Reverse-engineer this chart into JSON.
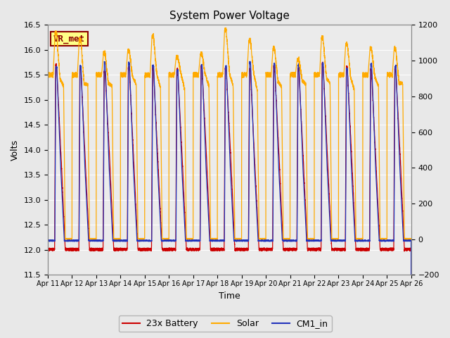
{
  "title": "System Power Voltage",
  "xlabel": "Time",
  "ylabel": "Volts",
  "ylim_left": [
    11.5,
    16.5
  ],
  "ylim_right": [
    -200,
    1200
  ],
  "bg_color": "#e8e8e8",
  "plot_bg_color": "#ebebeb",
  "grid_color": "#d0d0d0",
  "legend_labels": [
    "23x Battery",
    "Solar",
    "CM1_in"
  ],
  "colors": {
    "battery": "#cc0000",
    "solar": "#ffaa00",
    "cm1": "#2233bb"
  },
  "vr_met_label": "VR_met",
  "x_tick_labels": [
    "Apr 11",
    "Apr 12",
    "Apr 13",
    "Apr 14",
    "Apr 15",
    "Apr 16",
    "Apr 17",
    "Apr 18",
    "Apr 19",
    "Apr 20",
    "Apr 21",
    "Apr 22",
    "Apr 23",
    "Apr 24",
    "Apr 25",
    "Apr 26"
  ],
  "n_days": 15,
  "right_yticks": [
    -200,
    0,
    200,
    400,
    600,
    800,
    1000,
    1200
  ],
  "left_yticks": [
    11.5,
    12.0,
    12.5,
    13.0,
    13.5,
    14.0,
    14.5,
    15.0,
    15.5,
    16.0,
    16.5
  ]
}
